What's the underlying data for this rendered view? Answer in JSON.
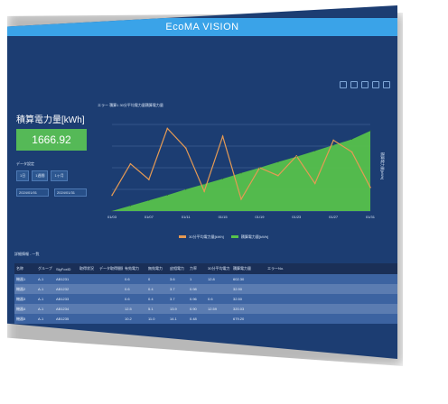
{
  "app": {
    "title": "EcoMA VISION"
  },
  "toolbar": {
    "icons": [
      "refresh-icon",
      "zoom-icon",
      "pan-icon",
      "download-icon",
      "home-icon"
    ]
  },
  "left": {
    "energy_label": "積算電力量[kWh]",
    "energy_value": "1666.92",
    "data_settings": "データ設定",
    "period_buttons": [
      "1日",
      "1週間",
      "1ヶ月"
    ],
    "date_start": "2024/01/01",
    "date_end": "2024/01/31"
  },
  "chart": {
    "title": "エラー 積算1 30分平均電力量積算電力量",
    "y_left_label": "",
    "y_right_label": "積算電力量[kWh]",
    "legend": [
      "30分平均電力量[kWh]",
      "積算電力量[kWh]"
    ],
    "colors": {
      "series_30min": "#e59a54",
      "series_cumulative": "#58c44a"
    }
  },
  "chart_data": {
    "type": "area",
    "x": [
      "01/03",
      "01/05",
      "01/07",
      "01/09",
      "01/11",
      "01/13",
      "01/15",
      "01/17",
      "01/19",
      "01/21",
      "01/23",
      "01/25",
      "01/27",
      "01/29",
      "01/31"
    ],
    "xlabel": "",
    "ylabel": "",
    "y2label": "積算電力量[kWh]",
    "series": [
      {
        "name": "30分平均電力量[kWh]",
        "values": [
          0.4,
          1.2,
          0.8,
          2.1,
          1.6,
          0.5,
          1.9,
          0.3,
          1.1,
          0.9,
          1.4,
          0.7,
          1.8,
          1.5,
          0.6
        ],
        "color": "#e59a54"
      },
      {
        "name": "積算電力量[kWh]",
        "values": [
          0,
          110,
          220,
          330,
          450,
          560,
          670,
          790,
          900,
          1020,
          1130,
          1250,
          1370,
          1490,
          1666.92
        ],
        "color": "#58c44a"
      }
    ],
    "ylim": [
      0,
      2.2
    ],
    "y2lim": [
      0,
      1800
    ],
    "grid": true,
    "legend_placement": "bottom"
  },
  "list": {
    "title": "詳細情報 - 一覧",
    "columns": [
      "名称",
      "グループ",
      "SigFoxID",
      "取得状況",
      "データ取得間隔",
      "有効電力",
      "無効電力",
      "皮相電力",
      "力率",
      "30分平均電力",
      "積算電力量",
      "エラーNo."
    ],
    "rows": [
      [
        "機器1",
        "A-1",
        "AB1231",
        "",
        "",
        "0.6",
        "0",
        "3.6",
        "1",
        "12.8",
        "602.30",
        ""
      ],
      [
        "機器2",
        "A-1",
        "AB1232",
        "",
        "",
        "0.6",
        "0.4",
        "3.7",
        "0.98",
        "",
        "32.90",
        ""
      ],
      [
        "機器3",
        "A-1",
        "AB1233",
        "",
        "",
        "0.6",
        "0.4",
        "3.7",
        "0.96",
        "0.6",
        "32.50",
        ""
      ],
      [
        "機器4",
        "A-1",
        "AB1234",
        "",
        "",
        "12.5",
        "5.1",
        "13.9",
        "0.90",
        "12.59",
        "320.03",
        ""
      ],
      [
        "機器5",
        "A-1",
        "AB1235",
        "",
        "",
        "10.2",
        "11.0",
        "14.1",
        "0.48",
        "",
        "679.20",
        ""
      ]
    ]
  }
}
